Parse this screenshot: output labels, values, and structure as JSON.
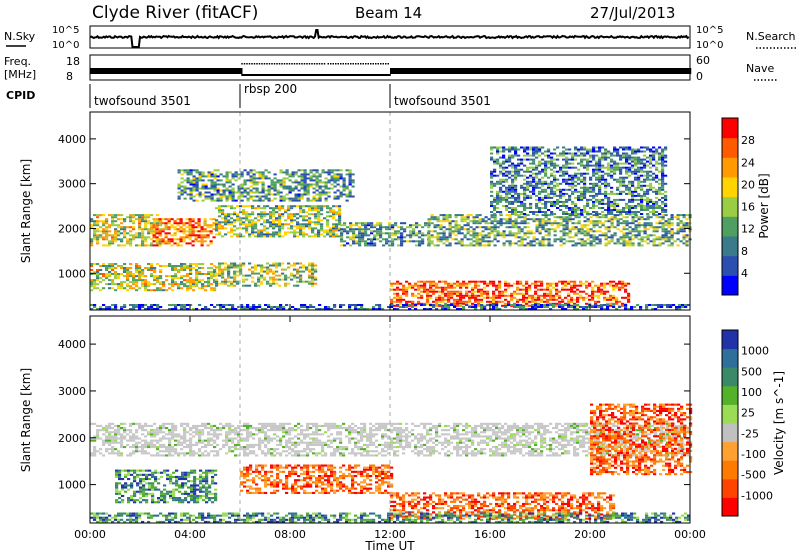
{
  "header": {
    "title": "Clyde River (fitACF)",
    "beam": "Beam 14",
    "date": "27/Jul/2013"
  },
  "status_panels": {
    "nsky_label": "N.Sky",
    "nsky_ticks": [
      "10^5",
      "10^0"
    ],
    "nsearch_label": "N.Search",
    "nsearch_ticks": [
      "10^5",
      "10^0"
    ],
    "freq_label_1": "Freq.",
    "freq_label_2": "[MHz]",
    "freq_ticks": [
      "18",
      "8"
    ],
    "nave_label": "Nave",
    "nave_ticks": [
      "60",
      "0"
    ],
    "cpid_label": "CPID",
    "cpid_segments": [
      {
        "name": "twofsound 3501",
        "start_h": 0.0,
        "end_h": 6.0
      },
      {
        "name": "rbsp 200",
        "start_h": 6.0,
        "end_h": 12.0
      },
      {
        "name": "twofsound 3501",
        "start_h": 12.0,
        "end_h": 24.0
      }
    ]
  },
  "chart_data": [
    {
      "type": "heatmap",
      "panel": "power",
      "ylabel": "Slant Range [km]",
      "xlabel": "Time UT",
      "xlim": [
        0,
        24
      ],
      "ylim": [
        180,
        4600
      ],
      "x_tick_labels": [
        "00:00",
        "04:00",
        "08:00",
        "12:00",
        "16:00",
        "20:00",
        "00:00"
      ],
      "x_tick_values": [
        0,
        4,
        8,
        12,
        16,
        20,
        24
      ],
      "y_tick_values": [
        1000,
        2000,
        3000,
        4000
      ],
      "colorbar": {
        "label": "Power [dB]",
        "tick_labels": [
          "4",
          "8",
          "12",
          "16",
          "20",
          "24",
          "28"
        ],
        "range": [
          0,
          30
        ],
        "colors": [
          "#0000ff",
          "#2a4fb0",
          "#3a7a8a",
          "#4fa060",
          "#9acc44",
          "#ffd400",
          "#ff9a00",
          "#ff5a00",
          "#ff0000"
        ]
      },
      "echo_bands": [
        {
          "t_start": 0.0,
          "t_end": 2.8,
          "r_min": 1600,
          "r_max": 2300,
          "level": 0.55
        },
        {
          "t_start": 2.5,
          "t_end": 5.0,
          "r_min": 1600,
          "r_max": 2200,
          "level": 0.8
        },
        {
          "t_start": 5.0,
          "t_end": 10.0,
          "r_min": 1800,
          "r_max": 2500,
          "level": 0.45
        },
        {
          "t_start": 10.0,
          "t_end": 13.5,
          "r_min": 1600,
          "r_max": 2100,
          "level": 0.35
        },
        {
          "t_start": 13.5,
          "t_end": 24.0,
          "r_min": 1600,
          "r_max": 2300,
          "level": 0.4
        },
        {
          "t_start": 0.0,
          "t_end": 5.0,
          "r_min": 600,
          "r_max": 1200,
          "level": 0.55
        },
        {
          "t_start": 5.0,
          "t_end": 9.0,
          "r_min": 700,
          "r_max": 1200,
          "level": 0.5
        },
        {
          "t_start": 12.0,
          "t_end": 21.5,
          "r_min": 250,
          "r_max": 800,
          "level": 0.85
        },
        {
          "t_start": 3.5,
          "t_end": 10.5,
          "r_min": 2600,
          "r_max": 3300,
          "level": 0.35
        },
        {
          "t_start": 16.0,
          "t_end": 23.0,
          "r_min": 2300,
          "r_max": 3800,
          "level": 0.3
        },
        {
          "t_start": 0.0,
          "t_end": 24.0,
          "r_min": 180,
          "r_max": 300,
          "level": 0.2
        }
      ]
    },
    {
      "type": "heatmap",
      "panel": "velocity",
      "ylabel": "Slant Range [km]",
      "xlabel": "Time UT",
      "xlim": [
        0,
        24
      ],
      "ylim": [
        180,
        4600
      ],
      "x_tick_labels": [
        "00:00",
        "04:00",
        "08:00",
        "12:00",
        "16:00",
        "20:00",
        "00:00"
      ],
      "x_tick_values": [
        0,
        4,
        8,
        12,
        16,
        20,
        24
      ],
      "y_tick_values": [
        1000,
        2000,
        3000,
        4000
      ],
      "colorbar": {
        "label": "Velocity [m s^-1]",
        "tick_labels": [
          "1000",
          "500",
          "100",
          "25",
          "-25",
          "-100",
          "-500",
          "-1000"
        ],
        "colors": [
          "#2233aa",
          "#2f6f9a",
          "#3a8a6a",
          "#55b02a",
          "#9adc55",
          "#c0c0c0",
          "#ffa033",
          "#ff7a00",
          "#ff4400",
          "#ff0000"
        ]
      },
      "echo_bands": [
        {
          "t_start": 0.0,
          "t_end": 24.0,
          "r_min": 1600,
          "r_max": 2300,
          "category": "ground-scatter"
        },
        {
          "t_start": 1.0,
          "t_end": 5.0,
          "r_min": 600,
          "r_max": 1300,
          "category": "positive"
        },
        {
          "t_start": 6.0,
          "t_end": 12.0,
          "r_min": 800,
          "r_max": 1400,
          "category": "negative"
        },
        {
          "t_start": 12.0,
          "t_end": 21.0,
          "r_min": 250,
          "r_max": 800,
          "category": "negative"
        },
        {
          "t_start": 20.0,
          "t_end": 24.0,
          "r_min": 1200,
          "r_max": 2700,
          "category": "negative"
        },
        {
          "t_start": 0.0,
          "t_end": 24.0,
          "r_min": 180,
          "r_max": 400,
          "category": "positive"
        }
      ]
    }
  ],
  "colors": {
    "axis": "#000000",
    "background": "#ffffff",
    "grid_dash": "#aaaaaa"
  }
}
